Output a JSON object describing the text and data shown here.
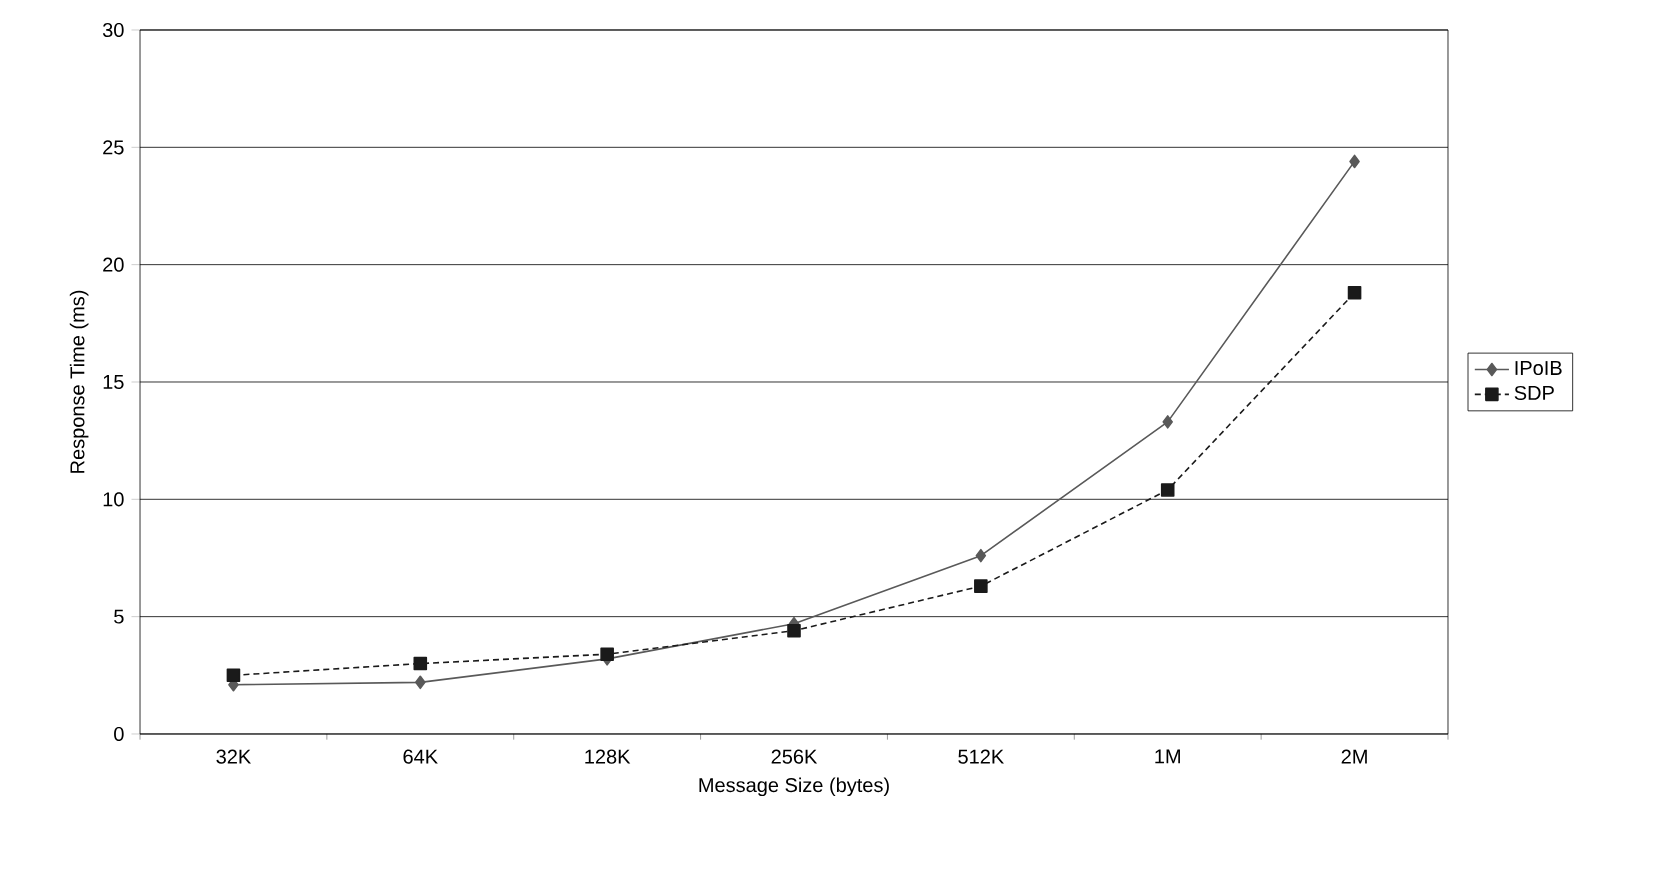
{
  "chart_data": {
    "type": "line",
    "xlabel": "Message Size (bytes)",
    "ylabel": "Response Time (ms)",
    "categories": [
      "32K",
      "64K",
      "128K",
      "256K",
      "512K",
      "1M",
      "2M"
    ],
    "series": [
      {
        "name": "IPoIB",
        "color": "#595959",
        "values": [
          2.1,
          2.2,
          3.2,
          4.7,
          7.6,
          13.3,
          24.4
        ],
        "marker": "diamond",
        "line_style": "solid"
      },
      {
        "name": "SDP",
        "color": "#1a1a1a",
        "values": [
          2.5,
          3.0,
          3.4,
          4.4,
          6.3,
          10.4,
          18.8
        ],
        "marker": "square",
        "line_style": "dashed"
      }
    ],
    "ylim": [
      0,
      30
    ],
    "yticks": [
      0,
      5,
      10,
      15,
      20,
      25,
      30
    ],
    "grid": "y",
    "legend": "right"
  }
}
